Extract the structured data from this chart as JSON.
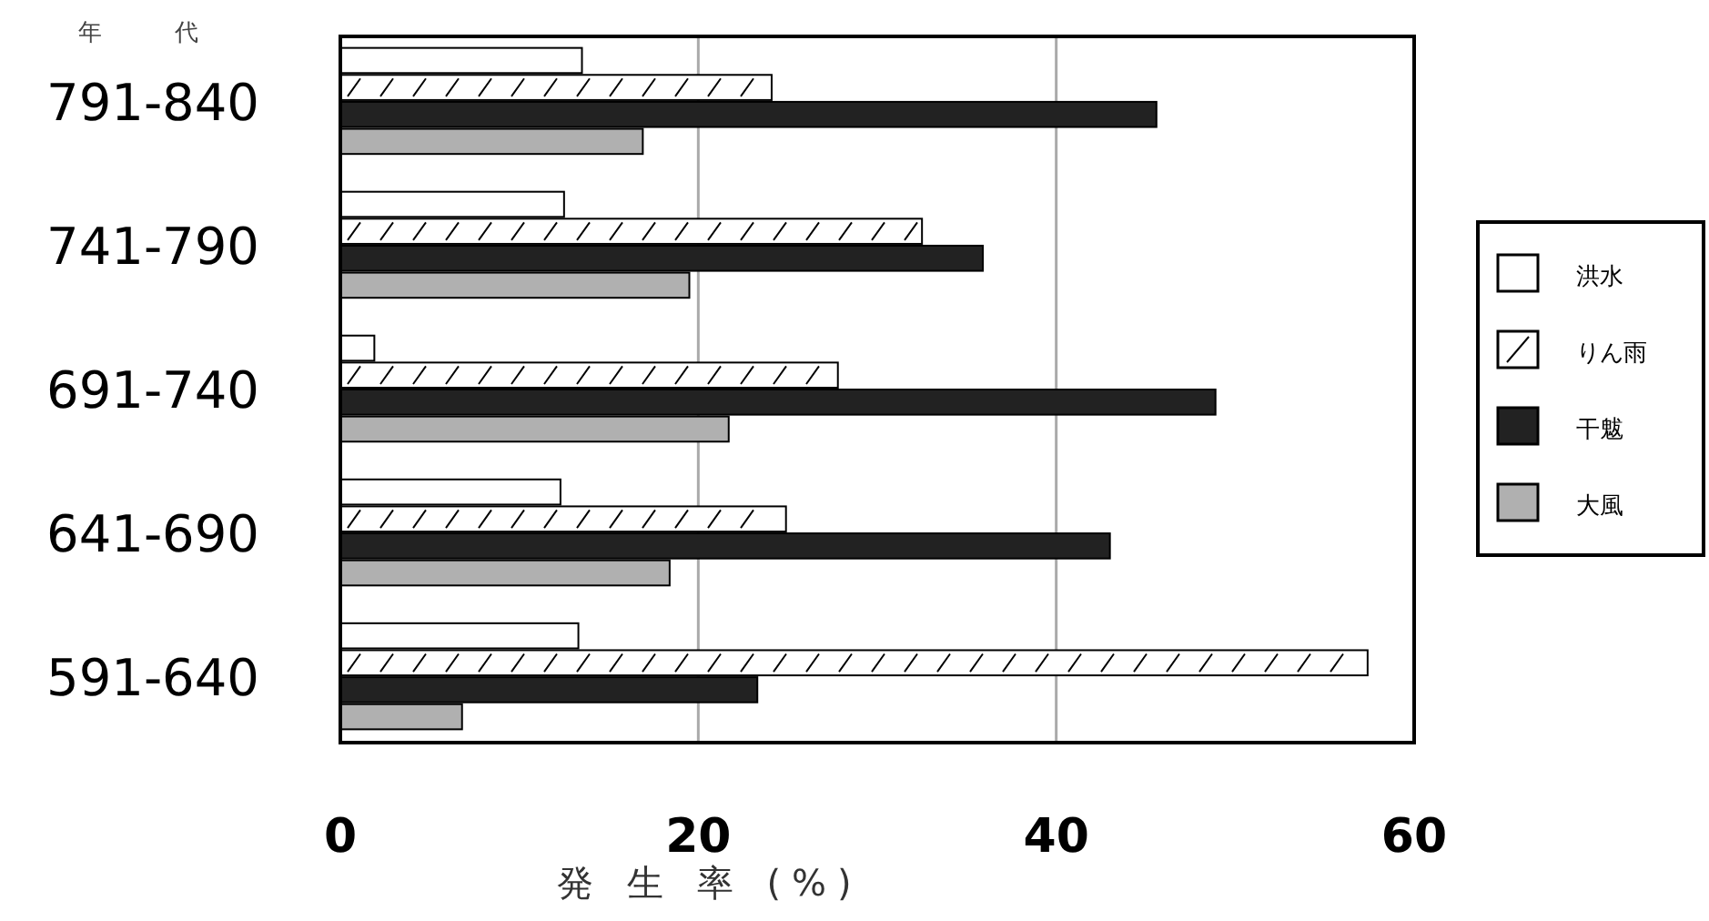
{
  "chart_data": {
    "type": "bar",
    "orientation": "horizontal",
    "ylabel": "年 代",
    "xlabel": "発 生 率 (%)",
    "categories": [
      "791-840",
      "741-790",
      "691-740",
      "641-690",
      "591-640"
    ],
    "series": [
      {
        "name": "洪水",
        "color": "#ffffff",
        "values": [
          13.5,
          12.5,
          1.9,
          12.3,
          13.3
        ]
      },
      {
        "name": "りん雨",
        "color": "#ffffff",
        "values": [
          24.1,
          32.5,
          27.8,
          24.9,
          57.4
        ]
      },
      {
        "name": "干魃",
        "color": "#222222",
        "values": [
          45.6,
          35.9,
          48.9,
          43.0,
          23.3
        ]
      },
      {
        "name": "大風",
        "color": "#b0b0b0",
        "values": [
          16.9,
          19.5,
          21.7,
          18.4,
          6.8
        ]
      }
    ],
    "xlim": [
      0,
      60
    ],
    "xticks": [
      0,
      20,
      40,
      60
    ],
    "grid": "x",
    "legend": "right"
  }
}
